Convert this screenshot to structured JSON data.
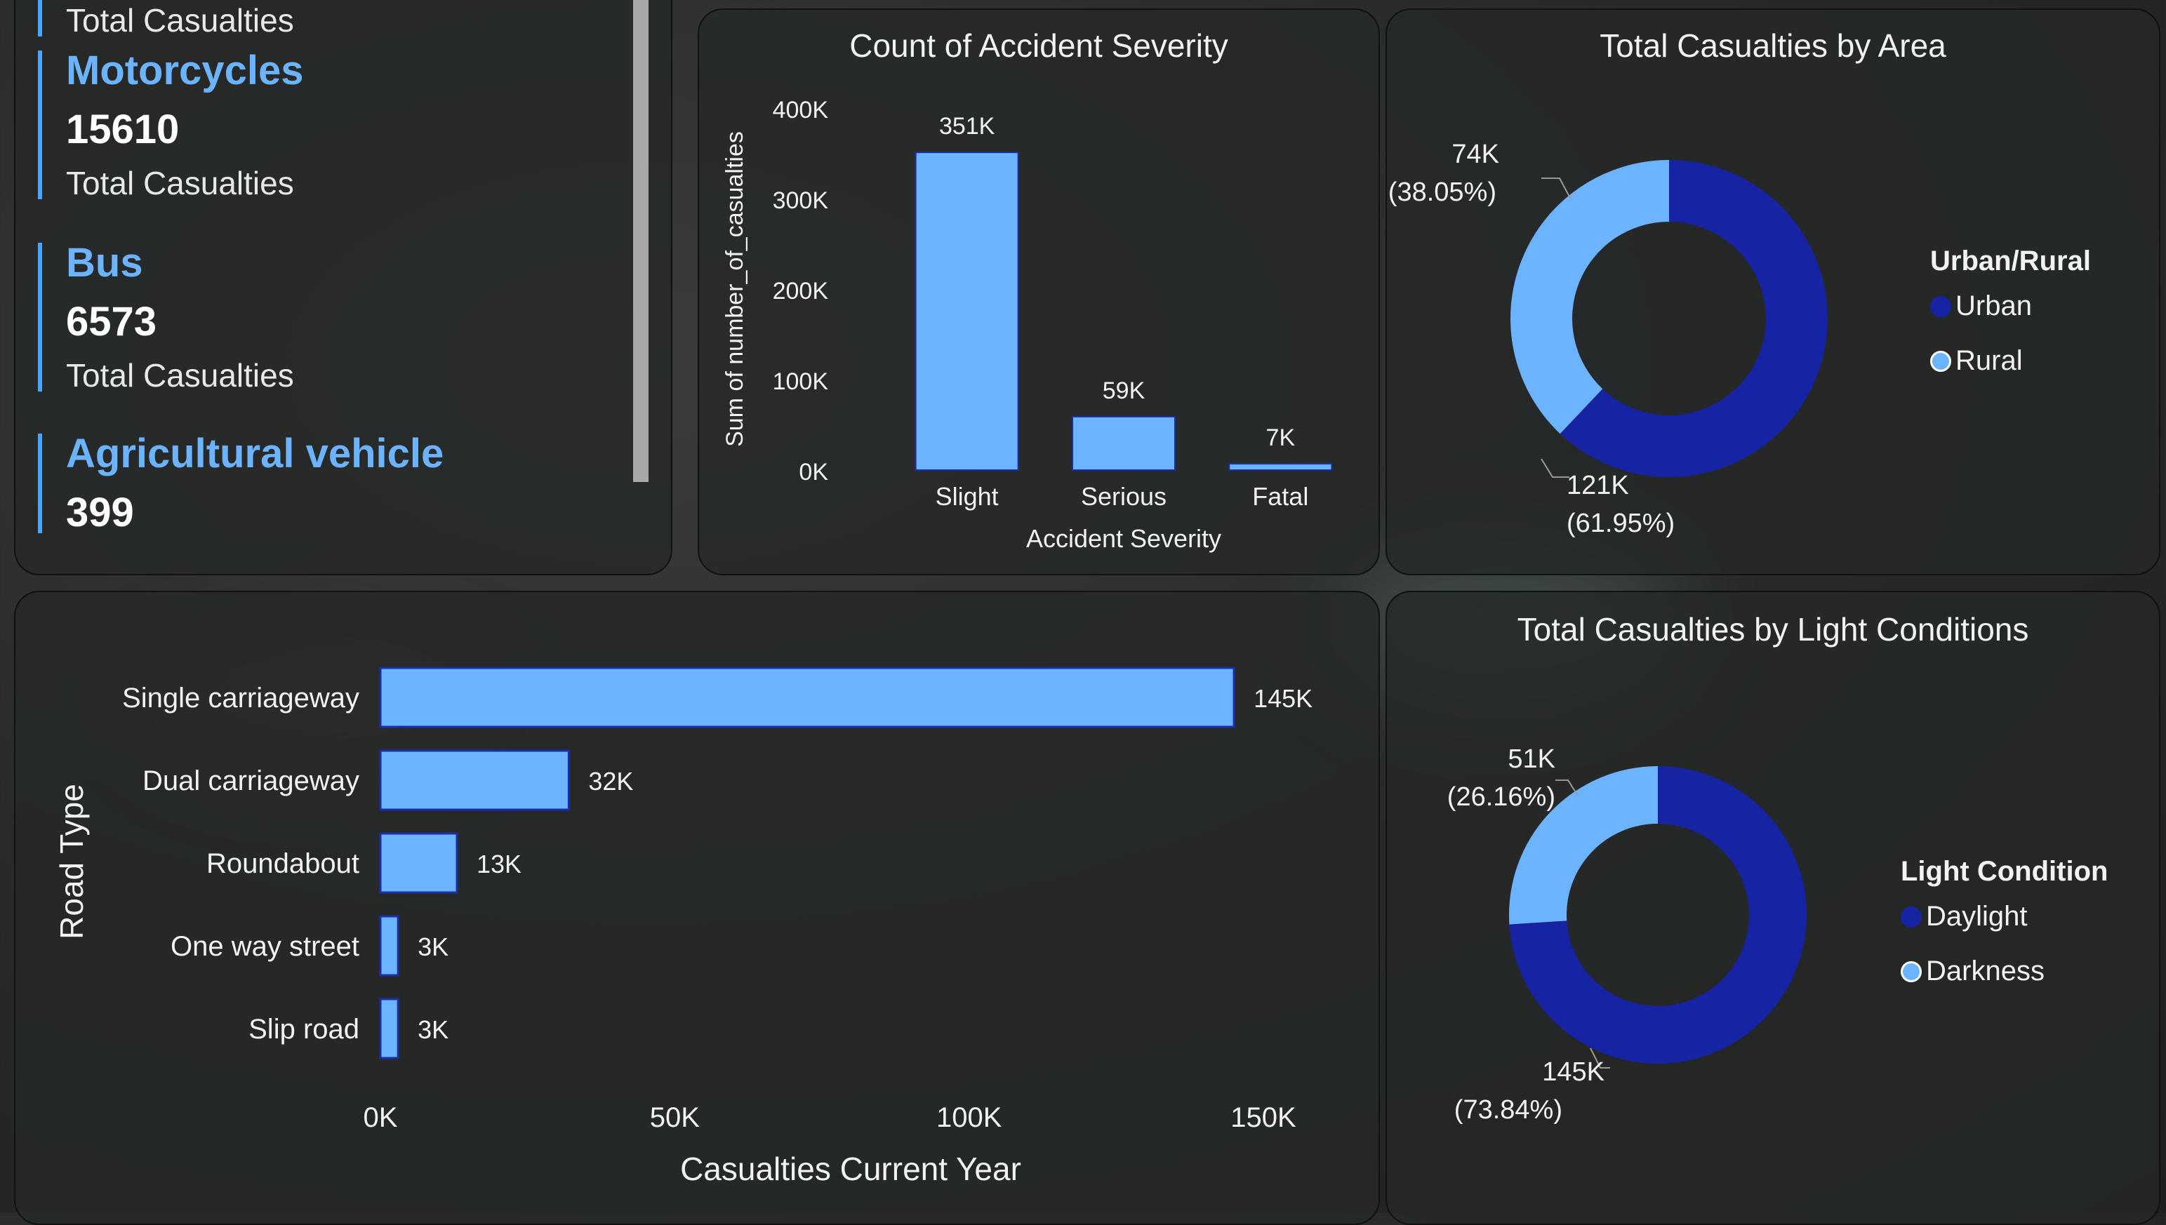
{
  "kpi_panel": {
    "items": [
      {
        "name": "",
        "value": "",
        "sub": "Total Casualties"
      },
      {
        "name": "Motorcycles",
        "value": "15610",
        "sub": "Total Casualties"
      },
      {
        "name": "Bus",
        "value": "6573",
        "sub": "Total Casualties"
      },
      {
        "name": "Agricultural vehicle",
        "value": "399",
        "sub": ""
      }
    ]
  },
  "colors": {
    "bar": "#6cb4ff",
    "bar_border": "#1a2ea8",
    "dark": "#1623a3",
    "light": "#6cb4ff",
    "text": "#f2f2f2"
  },
  "chart_data": [
    {
      "id": "severity",
      "type": "bar",
      "title": "Count of Accident Severity",
      "xlabel": "Accident Severity",
      "ylabel": "Sum of number_of_casualties",
      "categories": [
        "Slight",
        "Serious",
        "Fatal"
      ],
      "values": [
        351000,
        59000,
        7000
      ],
      "data_labels": [
        "351K",
        "59K",
        "7K"
      ],
      "yticks": [
        0,
        100000,
        200000,
        300000,
        400000
      ],
      "ytick_labels": [
        "0K",
        "100K",
        "200K",
        "300K",
        "400K"
      ],
      "ylim": [
        0,
        400000
      ]
    },
    {
      "id": "area",
      "type": "pie",
      "title": "Total Casualties by Area",
      "legend_title": "Urban/Rural",
      "legend_position": "right",
      "slices": [
        {
          "name": "Urban",
          "value": 121000,
          "label": "121K",
          "pct": "(61.95%)",
          "color": "#1623a3"
        },
        {
          "name": "Rural",
          "value": 74000,
          "label": "74K",
          "pct": "(38.05%)",
          "color": "#6cb4ff"
        }
      ]
    },
    {
      "id": "road",
      "type": "bar",
      "orientation": "horizontal",
      "xlabel": "Casualties Current Year",
      "ylabel": "Road Type",
      "categories": [
        "Single carriageway",
        "Dual carriageway",
        "Roundabout",
        "One way street",
        "Slip road"
      ],
      "values": [
        145000,
        32000,
        13000,
        3000,
        3000
      ],
      "data_labels": [
        "145K",
        "32K",
        "13K",
        "3K",
        "3K"
      ],
      "xticks": [
        0,
        50000,
        100000,
        150000
      ],
      "xtick_labels": [
        "0K",
        "50K",
        "100K",
        "150K"
      ],
      "xlim": [
        0,
        150000
      ]
    },
    {
      "id": "light",
      "type": "pie",
      "title": "Total Casualties by Light Conditions",
      "legend_title": "Light Condition",
      "legend_position": "right",
      "slices": [
        {
          "name": "Daylight",
          "value": 145000,
          "label": "145K",
          "pct": "(73.84%)",
          "color": "#1623a3"
        },
        {
          "name": "Darkness",
          "value": 51000,
          "label": "51K",
          "pct": "(26.16%)",
          "color": "#6cb4ff"
        }
      ]
    }
  ]
}
